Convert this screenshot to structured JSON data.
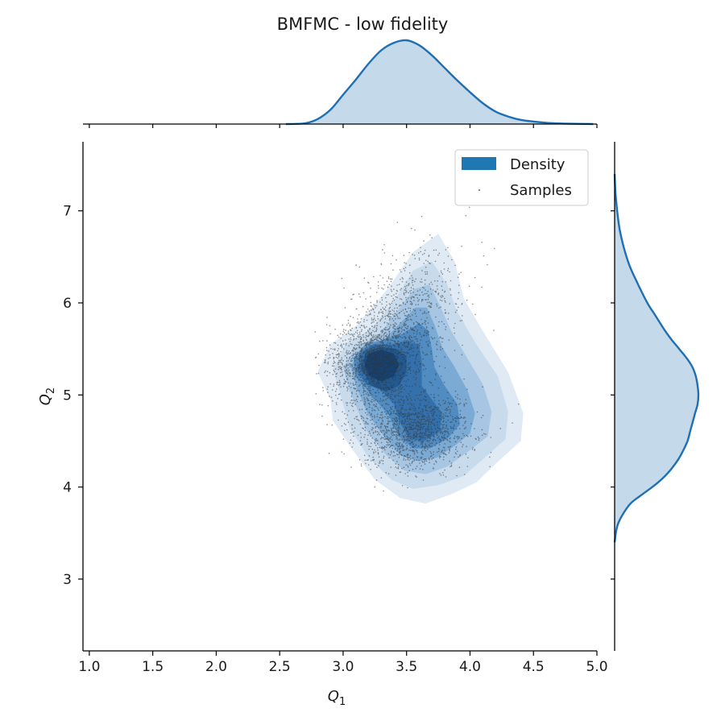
{
  "chart_data": {
    "type": "scatter",
    "title": "BMFMC - low fidelity",
    "xlabel": "Q",
    "xlabel_sub": "1",
    "ylabel": "Q",
    "ylabel_sub": "2",
    "xlim": [
      0.95,
      5.0
    ],
    "ylim": [
      2.22,
      7.75
    ],
    "xticks": [
      "1.0",
      "1.5",
      "2.0",
      "2.5",
      "3.0",
      "3.5",
      "4.0",
      "4.5",
      "5.0"
    ],
    "yticks": [
      "3",
      "4",
      "5",
      "6",
      "7"
    ],
    "grid": false,
    "legend_position": "top-right",
    "legend": [
      "Density",
      "Samples"
    ],
    "colors": {
      "density": "#1f77b4",
      "samples": "#333333",
      "marginal_fill": "#c4d9ea",
      "marginal_line": "#1f6fb2"
    },
    "samples": {
      "count_approx": 10000,
      "x_range": [
        2.77,
        4.78
      ],
      "y_range": [
        3.72,
        7.07
      ],
      "modes": [
        [
          3.22,
          5.38
        ],
        [
          3.55,
          4.62
        ]
      ]
    },
    "density_levels": [
      {
        "level": 1,
        "polygon": [
          [
            2.9,
            4.95
          ],
          [
            2.8,
            5.25
          ],
          [
            2.9,
            5.55
          ],
          [
            3.1,
            5.75
          ],
          [
            3.35,
            6.15
          ],
          [
            3.55,
            6.55
          ],
          [
            3.75,
            6.75
          ],
          [
            3.88,
            6.45
          ],
          [
            3.95,
            6.05
          ],
          [
            4.12,
            5.65
          ],
          [
            4.3,
            5.25
          ],
          [
            4.42,
            4.8
          ],
          [
            4.4,
            4.5
          ],
          [
            4.2,
            4.25
          ],
          [
            4.05,
            4.05
          ],
          [
            3.85,
            3.92
          ],
          [
            3.65,
            3.82
          ],
          [
            3.45,
            3.88
          ],
          [
            3.25,
            4.08
          ],
          [
            3.05,
            4.45
          ],
          [
            2.92,
            4.72
          ]
        ]
      },
      {
        "level": 2,
        "polygon": [
          [
            2.98,
            5.0
          ],
          [
            2.92,
            5.28
          ],
          [
            3.02,
            5.55
          ],
          [
            3.22,
            5.72
          ],
          [
            3.4,
            6.02
          ],
          [
            3.55,
            6.35
          ],
          [
            3.7,
            6.45
          ],
          [
            3.82,
            6.2
          ],
          [
            3.9,
            5.9
          ],
          [
            4.05,
            5.55
          ],
          [
            4.22,
            5.2
          ],
          [
            4.3,
            4.82
          ],
          [
            4.28,
            4.52
          ],
          [
            4.1,
            4.3
          ],
          [
            3.95,
            4.12
          ],
          [
            3.75,
            4.02
          ],
          [
            3.55,
            3.98
          ],
          [
            3.38,
            4.08
          ],
          [
            3.2,
            4.32
          ],
          [
            3.05,
            4.65
          ]
        ]
      },
      {
        "level": 3,
        "polygon": [
          [
            3.05,
            5.05
          ],
          [
            3.0,
            5.3
          ],
          [
            3.1,
            5.52
          ],
          [
            3.28,
            5.65
          ],
          [
            3.42,
            5.9
          ],
          [
            3.56,
            6.15
          ],
          [
            3.68,
            6.2
          ],
          [
            3.76,
            5.98
          ],
          [
            3.85,
            5.7
          ],
          [
            3.97,
            5.42
          ],
          [
            4.1,
            5.12
          ],
          [
            4.17,
            4.82
          ],
          [
            4.14,
            4.55
          ],
          [
            3.98,
            4.38
          ],
          [
            3.82,
            4.22
          ],
          [
            3.65,
            4.14
          ],
          [
            3.48,
            4.18
          ],
          [
            3.33,
            4.36
          ],
          [
            3.18,
            4.62
          ]
        ]
      },
      {
        "level": 4,
        "polygon": [
          [
            3.1,
            5.1
          ],
          [
            3.06,
            5.32
          ],
          [
            3.15,
            5.5
          ],
          [
            3.32,
            5.6
          ],
          [
            3.45,
            5.78
          ],
          [
            3.57,
            5.95
          ],
          [
            3.66,
            5.95
          ],
          [
            3.72,
            5.76
          ],
          [
            3.78,
            5.52
          ],
          [
            3.88,
            5.3
          ],
          [
            3.98,
            5.05
          ],
          [
            4.04,
            4.8
          ],
          [
            4.0,
            4.58
          ],
          [
            3.88,
            4.45
          ],
          [
            3.74,
            4.32
          ],
          [
            3.6,
            4.28
          ],
          [
            3.46,
            4.34
          ],
          [
            3.34,
            4.52
          ],
          [
            3.2,
            4.78
          ]
        ]
      },
      {
        "level": 5,
        "polygon": [
          [
            3.1,
            5.2
          ],
          [
            3.08,
            5.4
          ],
          [
            3.18,
            5.56
          ],
          [
            3.32,
            5.6
          ],
          [
            3.46,
            5.66
          ],
          [
            3.6,
            5.78
          ],
          [
            3.67,
            5.7
          ],
          [
            3.7,
            5.5
          ],
          [
            3.72,
            5.3
          ],
          [
            3.8,
            5.1
          ],
          [
            3.9,
            4.9
          ],
          [
            3.92,
            4.68
          ],
          [
            3.82,
            4.52
          ],
          [
            3.68,
            4.42
          ],
          [
            3.55,
            4.42
          ],
          [
            3.44,
            4.55
          ],
          [
            3.36,
            4.78
          ],
          [
            3.22,
            5.0
          ]
        ]
      },
      {
        "level": 6,
        "polygon": [
          [
            3.12,
            5.25
          ],
          [
            3.13,
            5.45
          ],
          [
            3.24,
            5.55
          ],
          [
            3.38,
            5.55
          ],
          [
            3.5,
            5.58
          ],
          [
            3.6,
            5.55
          ],
          [
            3.62,
            5.35
          ],
          [
            3.62,
            5.1
          ],
          [
            3.7,
            4.95
          ],
          [
            3.78,
            4.8
          ],
          [
            3.76,
            4.6
          ],
          [
            3.64,
            4.5
          ],
          [
            3.52,
            4.52
          ],
          [
            3.45,
            4.7
          ],
          [
            3.4,
            4.9
          ],
          [
            3.3,
            5.05
          ],
          [
            3.18,
            5.12
          ]
        ]
      },
      {
        "level": 7,
        "polygon": [
          [
            3.14,
            5.3
          ],
          [
            3.18,
            5.47
          ],
          [
            3.3,
            5.52
          ],
          [
            3.42,
            5.5
          ],
          [
            3.5,
            5.42
          ],
          [
            3.5,
            5.25
          ],
          [
            3.44,
            5.1
          ],
          [
            3.34,
            5.04
          ],
          [
            3.22,
            5.1
          ]
        ]
      },
      {
        "level": 8,
        "polygon": [
          [
            3.17,
            5.32
          ],
          [
            3.2,
            5.45
          ],
          [
            3.3,
            5.49
          ],
          [
            3.4,
            5.45
          ],
          [
            3.44,
            5.33
          ],
          [
            3.4,
            5.2
          ],
          [
            3.3,
            5.15
          ],
          [
            3.21,
            5.2
          ]
        ]
      }
    ],
    "marginal_x": {
      "x": [
        2.55,
        2.7,
        2.8,
        2.9,
        3.0,
        3.1,
        3.2,
        3.3,
        3.4,
        3.5,
        3.6,
        3.7,
        3.8,
        3.9,
        4.0,
        4.1,
        4.2,
        4.3,
        4.4,
        4.5,
        4.6,
        4.7,
        4.8,
        4.9,
        4.97
      ],
      "density": [
        0.0,
        0.01,
        0.06,
        0.17,
        0.35,
        0.53,
        0.72,
        0.88,
        0.97,
        1.0,
        0.94,
        0.82,
        0.67,
        0.52,
        0.38,
        0.25,
        0.15,
        0.09,
        0.05,
        0.03,
        0.015,
        0.008,
        0.004,
        0.002,
        0.0
      ]
    },
    "marginal_y": {
      "y": [
        3.4,
        3.6,
        3.8,
        3.9,
        4.0,
        4.1,
        4.2,
        4.3,
        4.4,
        4.5,
        4.6,
        4.7,
        4.8,
        4.9,
        5.0,
        5.1,
        5.2,
        5.3,
        5.4,
        5.5,
        5.6,
        5.7,
        5.8,
        5.9,
        6.0,
        6.2,
        6.4,
        6.6,
        6.8,
        7.0,
        7.2,
        7.4
      ],
      "density": [
        0.0,
        0.04,
        0.17,
        0.3,
        0.45,
        0.58,
        0.68,
        0.76,
        0.82,
        0.87,
        0.9,
        0.93,
        0.96,
        0.99,
        1.0,
        0.99,
        0.97,
        0.93,
        0.86,
        0.77,
        0.68,
        0.6,
        0.53,
        0.46,
        0.39,
        0.28,
        0.18,
        0.11,
        0.06,
        0.03,
        0.01,
        0.0
      ]
    }
  }
}
